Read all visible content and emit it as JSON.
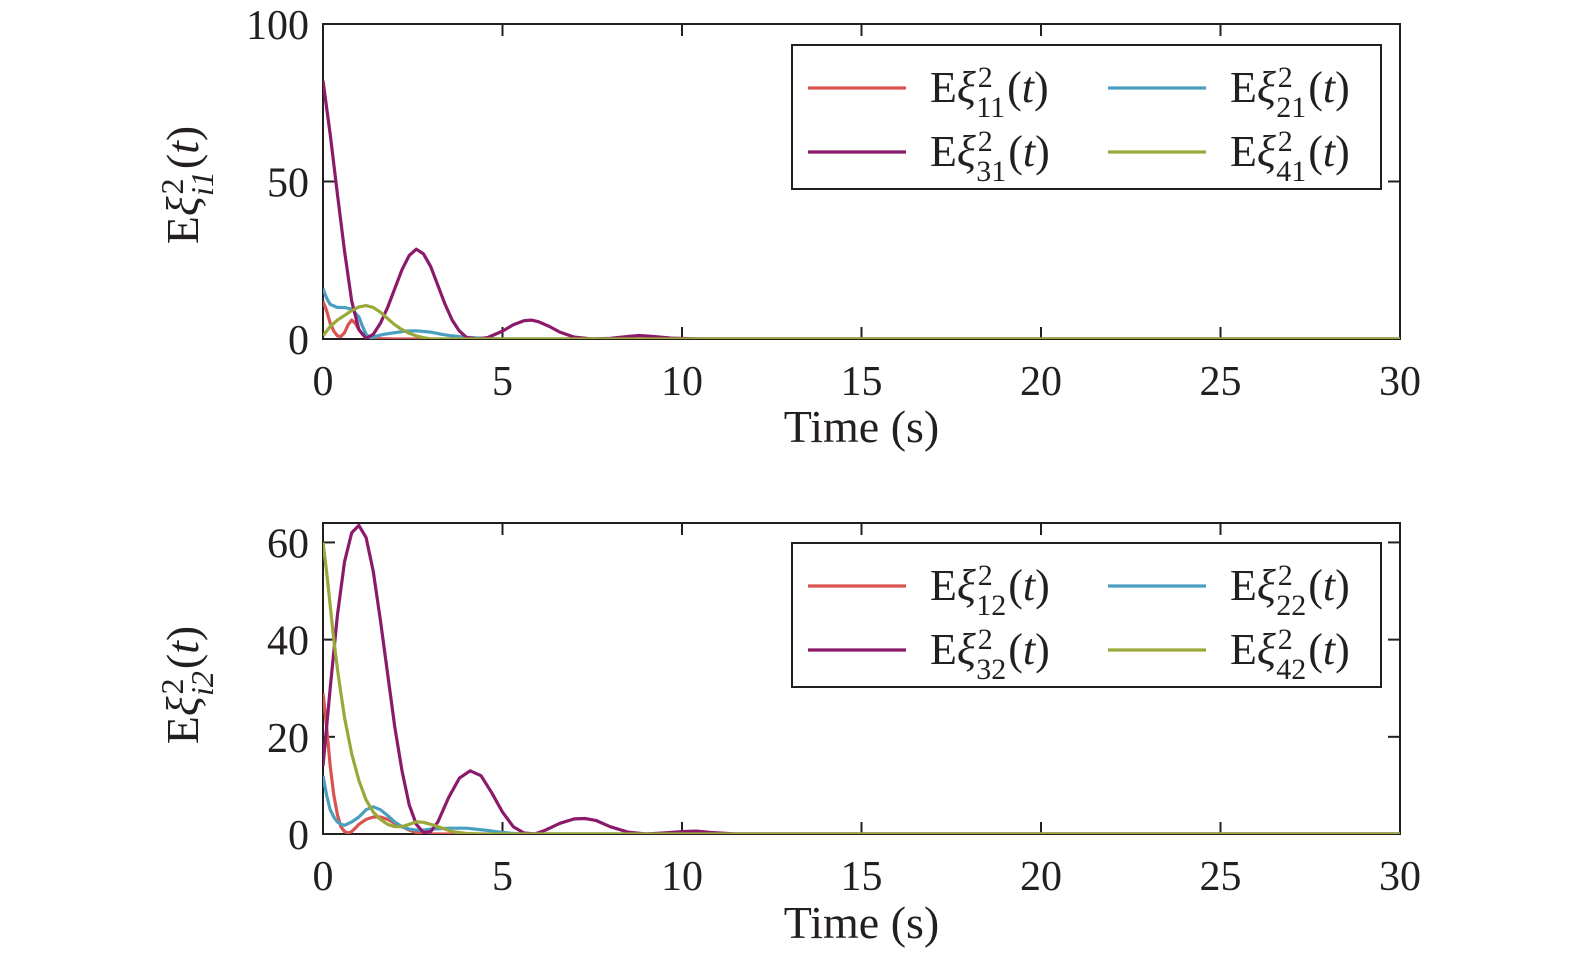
{
  "chart_data": [
    {
      "type": "line",
      "xlabel": "Time (s)",
      "ylabel": {
        "prefix": "E",
        "symbol": "ξ",
        "sup": "2",
        "sub": "i1",
        "arg": "(t)"
      },
      "xlim": [
        0,
        30
      ],
      "ylim": [
        0,
        100
      ],
      "xticks": [
        "0",
        "5",
        "10",
        "15",
        "20",
        "25",
        "30"
      ],
      "yticks": [
        "0",
        "50",
        "100"
      ],
      "grid": false,
      "legend_position": "top-right",
      "legend_columns": 2,
      "series": [
        {
          "name": "Eξ²₁₁(t)",
          "label": {
            "prefix": "E",
            "symbol": "ξ",
            "sup": "2",
            "sub": "11",
            "arg": "(t)"
          },
          "color": "#d9534f",
          "x": [
            0,
            0.1,
            0.2,
            0.3,
            0.4,
            0.5,
            0.6,
            0.7,
            0.8,
            0.9,
            1.0,
            1.1,
            1.2,
            1.4,
            1.6,
            2.0,
            3.0,
            30
          ],
          "y": [
            12,
            9,
            5,
            2.5,
            1,
            0.8,
            2,
            4.5,
            6,
            5,
            3,
            1.5,
            0.5,
            0.2,
            0.1,
            0,
            0,
            0
          ]
        },
        {
          "name": "Eξ²₂₁(t)",
          "label": {
            "prefix": "E",
            "symbol": "ξ",
            "sup": "2",
            "sub": "21",
            "arg": "(t)"
          },
          "color": "#4a9fc0",
          "x": [
            0,
            0.1,
            0.2,
            0.4,
            0.6,
            0.8,
            1.0,
            1.1,
            1.2,
            1.3,
            1.4,
            1.5,
            1.7,
            2.0,
            2.3,
            2.6,
            3.0,
            3.3,
            3.6,
            4.0,
            4.5,
            5.0,
            30
          ],
          "y": [
            16,
            13,
            11,
            10,
            10,
            9.5,
            7,
            4,
            1.5,
            0.5,
            0.5,
            1,
            1.5,
            2,
            2.5,
            2.6,
            2.2,
            1.5,
            1,
            0.5,
            0.2,
            0,
            0
          ]
        },
        {
          "name": "Eξ²₃₁(t)",
          "label": {
            "prefix": "E",
            "symbol": "ξ",
            "sup": "2",
            "sub": "31",
            "arg": "(t)"
          },
          "color": "#8b1a6b",
          "x": [
            0,
            0.2,
            0.4,
            0.6,
            0.8,
            1.0,
            1.2,
            1.4,
            1.6,
            1.8,
            2.0,
            2.2,
            2.4,
            2.6,
            2.8,
            3.0,
            3.2,
            3.4,
            3.6,
            3.8,
            4.0,
            4.3,
            4.6,
            5.0,
            5.3,
            5.6,
            5.8,
            6.0,
            6.3,
            6.6,
            7.0,
            7.5,
            8.0,
            8.5,
            8.8,
            9.2,
            9.7,
            10.5,
            30
          ],
          "y": [
            82,
            65,
            46,
            28,
            12,
            3,
            0.2,
            1.5,
            5,
            10,
            16,
            22,
            26.5,
            28.5,
            27,
            23,
            17,
            11,
            6,
            2.5,
            0.5,
            0,
            0.5,
            2.5,
            4.5,
            5.8,
            6,
            5.5,
            4,
            2.2,
            0.6,
            0,
            0.2,
            0.8,
            1.1,
            0.8,
            0.3,
            0,
            0
          ]
        },
        {
          "name": "Eξ²₄₁(t)",
          "label": {
            "prefix": "E",
            "symbol": "ξ",
            "sup": "2",
            "sub": "41",
            "arg": "(t)"
          },
          "color": "#9aa83a",
          "x": [
            0,
            0.2,
            0.4,
            0.6,
            0.8,
            1.0,
            1.2,
            1.4,
            1.6,
            1.8,
            2.0,
            2.2,
            2.4,
            2.6,
            2.8,
            3.0,
            30
          ],
          "y": [
            1,
            4,
            6,
            7.5,
            9,
            10.2,
            10.6,
            10,
            8.5,
            6.5,
            4.5,
            3,
            1.8,
            1,
            0.4,
            0,
            0
          ]
        }
      ]
    },
    {
      "type": "line",
      "xlabel": "Time (s)",
      "ylabel": {
        "prefix": "E",
        "symbol": "ξ",
        "sup": "2",
        "sub": "i2",
        "arg": "(t)"
      },
      "xlim": [
        0,
        30
      ],
      "ylim": [
        0,
        64
      ],
      "xticks": [
        "0",
        "5",
        "10",
        "15",
        "20",
        "25",
        "30"
      ],
      "yticks": [
        "0",
        "20",
        "40",
        "60"
      ],
      "grid": false,
      "legend_position": "top-right",
      "legend_columns": 2,
      "series": [
        {
          "name": "Eξ²₁₂(t)",
          "label": {
            "prefix": "E",
            "symbol": "ξ",
            "sup": "2",
            "sub": "12",
            "arg": "(t)"
          },
          "color": "#d9534f",
          "x": [
            0,
            0.1,
            0.2,
            0.3,
            0.4,
            0.5,
            0.6,
            0.7,
            0.8,
            0.9,
            1.0,
            1.2,
            1.4,
            1.6,
            1.8,
            2.0,
            2.2,
            2.4,
            2.6,
            3.0,
            30
          ],
          "y": [
            29,
            22,
            14,
            8,
            4,
            1.5,
            0.5,
            0.2,
            0.5,
            1.2,
            2,
            3,
            3.5,
            3.5,
            3,
            2.2,
            1.5,
            0.8,
            0.3,
            0,
            0
          ]
        },
        {
          "name": "Eξ²₂₂(t)",
          "label": {
            "prefix": "E",
            "symbol": "ξ",
            "sup": "2",
            "sub": "22",
            "arg": "(t)"
          },
          "color": "#4a9fc0",
          "x": [
            0,
            0.1,
            0.2,
            0.3,
            0.4,
            0.5,
            0.6,
            0.8,
            1.0,
            1.2,
            1.4,
            1.6,
            1.8,
            2.0,
            2.2,
            2.4,
            2.6,
            2.8,
            3.0,
            3.5,
            4.0,
            4.5,
            5.0,
            5.5,
            30
          ],
          "y": [
            12,
            8,
            5,
            3.5,
            2.5,
            2,
            1.8,
            2.5,
            3.5,
            5,
            5.6,
            5,
            3.8,
            2.5,
            1.5,
            1,
            0.8,
            0.8,
            1,
            1.2,
            1.2,
            0.8,
            0.3,
            0,
            0
          ]
        },
        {
          "name": "Eξ²₃₂(t)",
          "label": {
            "prefix": "E",
            "symbol": "ξ",
            "sup": "2",
            "sub": "32",
            "arg": "(t)"
          },
          "color": "#8b1a6b",
          "x": [
            0,
            0.1,
            0.2,
            0.4,
            0.6,
            0.8,
            1.0,
            1.2,
            1.4,
            1.6,
            1.8,
            2.0,
            2.2,
            2.4,
            2.6,
            2.8,
            3.0,
            3.2,
            3.5,
            3.8,
            4.1,
            4.4,
            4.7,
            5.0,
            5.3,
            5.6,
            5.9,
            6.2,
            6.6,
            7.0,
            7.3,
            7.6,
            8.0,
            8.5,
            9.0,
            9.5,
            10.0,
            10.4,
            10.8,
            11.5,
            30
          ],
          "y": [
            14,
            22,
            30,
            45,
            56,
            62,
            63.5,
            61,
            54,
            44,
            33,
            22,
            13,
            6,
            2,
            0.3,
            0.5,
            2.5,
            7.5,
            11.5,
            13,
            12,
            8.5,
            4.5,
            1.5,
            0.2,
            0,
            0.8,
            2.2,
            3.1,
            3.2,
            2.8,
            1.5,
            0.4,
            0,
            0.2,
            0.5,
            0.6,
            0.3,
            0,
            0
          ]
        },
        {
          "name": "Eξ²₄₂(t)",
          "label": {
            "prefix": "E",
            "symbol": "ξ",
            "sup": "2",
            "sub": "42",
            "arg": "(t)"
          },
          "color": "#9aa83a",
          "x": [
            0,
            0.1,
            0.2,
            0.3,
            0.4,
            0.5,
            0.6,
            0.8,
            1.0,
            1.2,
            1.4,
            1.6,
            1.8,
            2.0,
            2.2,
            2.4,
            2.6,
            2.8,
            3.0,
            3.2,
            3.4,
            3.6,
            4.0,
            4.4,
            30
          ],
          "y": [
            60,
            54,
            47,
            40,
            34,
            29,
            24,
            16.5,
            11,
            7,
            4.5,
            3,
            2,
            1.5,
            1.5,
            2,
            2.5,
            2.4,
            2,
            1.5,
            1,
            0.5,
            0.1,
            0,
            0
          ]
        }
      ]
    }
  ]
}
